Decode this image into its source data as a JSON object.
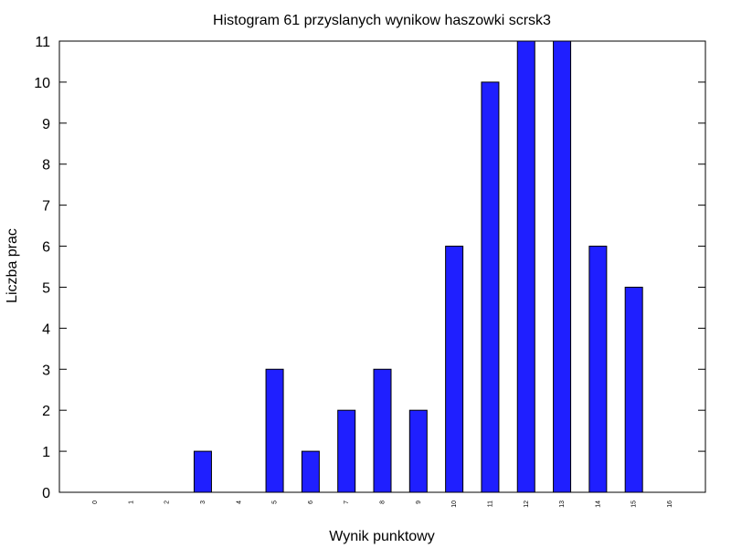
{
  "chart_data": {
    "type": "bar",
    "title": "Histogram 61 przyslanych wynikow haszowki scrsk3",
    "xlabel": "Wynik punktowy",
    "ylabel": "Liczba prac",
    "categories": [
      "0",
      "1",
      "2",
      "3",
      "4",
      "5",
      "6",
      "7",
      "8",
      "9",
      "10",
      "11",
      "12",
      "13",
      "14",
      "15",
      "16"
    ],
    "values": [
      0,
      0,
      0,
      1,
      0,
      3,
      1,
      2,
      3,
      2,
      6,
      10,
      11,
      11,
      6,
      5,
      0
    ],
    "ylim": [
      0,
      11
    ],
    "yticks": [
      "0",
      "1",
      "2",
      "3",
      "4",
      "5",
      "6",
      "7",
      "8",
      "9",
      "10",
      "11"
    ],
    "bar_color": "#1f1fff",
    "grid": false,
    "legend": "none"
  }
}
